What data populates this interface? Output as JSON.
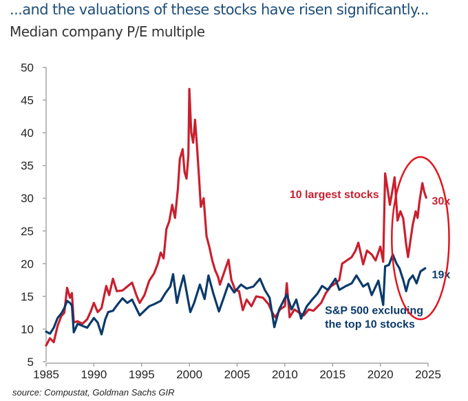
{
  "title": "...and the valuations of these stocks have risen significantly...",
  "subtitle": "Median company P/E multiple",
  "source": "source: Compustat, Goldman Sachs GIR",
  "colors": {
    "largest": "#c8202e",
    "excluding": "#0b3a6b",
    "title": "#1f4e79",
    "highlight": "#e0151f"
  },
  "chart_data": {
    "type": "line",
    "title": "Median company P/E multiple",
    "xlabel": "",
    "ylabel": "",
    "xlim": [
      1985,
      2025
    ],
    "ylim": [
      5,
      50
    ],
    "x_ticks": [
      "1985",
      "1990",
      "1995",
      "2000",
      "2005",
      "2010",
      "2015",
      "2020",
      "2025"
    ],
    "y_ticks": [
      "5",
      "10",
      "15",
      "20",
      "25",
      "30",
      "35",
      "40",
      "45",
      "50"
    ],
    "grid": false,
    "legend": "inline labels",
    "series": [
      {
        "name": "10 largest stocks",
        "label": "10 largest stocks",
        "end_label": "30x",
        "color_key": "largest",
        "points": [
          [
            1985.0,
            7.5
          ],
          [
            1985.4,
            8.6
          ],
          [
            1985.8,
            8.0
          ],
          [
            1986.2,
            10.5
          ],
          [
            1986.6,
            12.0
          ],
          [
            1986.9,
            12.5
          ],
          [
            1987.2,
            16.3
          ],
          [
            1987.5,
            14.8
          ],
          [
            1987.7,
            15.5
          ],
          [
            1987.9,
            11.0
          ],
          [
            1988.3,
            11.2
          ],
          [
            1988.8,
            10.8
          ],
          [
            1989.3,
            11.5
          ],
          [
            1989.7,
            12.8
          ],
          [
            1990.0,
            14.0
          ],
          [
            1990.4,
            12.6
          ],
          [
            1990.8,
            13.2
          ],
          [
            1991.3,
            16.6
          ],
          [
            1991.6,
            15.2
          ],
          [
            1992.0,
            17.7
          ],
          [
            1992.4,
            15.8
          ],
          [
            1993.0,
            15.9
          ],
          [
            1993.5,
            16.5
          ],
          [
            1994.0,
            17.1
          ],
          [
            1994.5,
            15.0
          ],
          [
            1994.8,
            14.0
          ],
          [
            1995.3,
            15.2
          ],
          [
            1995.8,
            17.4
          ],
          [
            1996.3,
            18.5
          ],
          [
            1996.7,
            20.0
          ],
          [
            1997.0,
            21.7
          ],
          [
            1997.3,
            20.8
          ],
          [
            1997.6,
            25.3
          ],
          [
            1997.9,
            26.5
          ],
          [
            1998.2,
            29.0
          ],
          [
            1998.5,
            27.0
          ],
          [
            1998.8,
            31.5
          ],
          [
            1999.0,
            36.0
          ],
          [
            1999.3,
            37.5
          ],
          [
            1999.5,
            34.0
          ],
          [
            1999.7,
            33.0
          ],
          [
            1999.9,
            36.5
          ],
          [
            2000.0,
            46.7
          ],
          [
            2000.2,
            40.0
          ],
          [
            2000.4,
            38.5
          ],
          [
            2000.6,
            42.0
          ],
          [
            2000.8,
            38.0
          ],
          [
            2001.0,
            33.5
          ],
          [
            2001.2,
            28.7
          ],
          [
            2001.5,
            30.0
          ],
          [
            2001.8,
            24.2
          ],
          [
            2002.1,
            22.5
          ],
          [
            2002.4,
            20.5
          ],
          [
            2002.7,
            19.0
          ],
          [
            2003.0,
            18.0
          ],
          [
            2003.2,
            16.8
          ],
          [
            2003.6,
            18.5
          ],
          [
            2004.1,
            20.6
          ],
          [
            2004.4,
            17.5
          ],
          [
            2004.8,
            16.0
          ],
          [
            2005.2,
            15.8
          ],
          [
            2005.6,
            12.9
          ],
          [
            2006.0,
            14.5
          ],
          [
            2006.5,
            13.5
          ],
          [
            2007.0,
            15.0
          ],
          [
            2007.7,
            14.8
          ],
          [
            2008.3,
            13.8
          ],
          [
            2008.7,
            12.5
          ],
          [
            2009.0,
            11.8
          ],
          [
            2009.5,
            13.0
          ],
          [
            2010.0,
            13.5
          ],
          [
            2010.2,
            17.0
          ],
          [
            2010.5,
            11.8
          ],
          [
            2011.0,
            13.0
          ],
          [
            2011.5,
            12.5
          ],
          [
            2012.0,
            12.1
          ],
          [
            2012.5,
            13.0
          ],
          [
            2013.0,
            12.8
          ],
          [
            2013.8,
            14.0
          ],
          [
            2014.3,
            15.5
          ],
          [
            2014.8,
            16.5
          ],
          [
            2015.3,
            17.0
          ],
          [
            2015.7,
            17.5
          ],
          [
            2016.0,
            20.0
          ],
          [
            2016.5,
            20.5
          ],
          [
            2017.0,
            21.0
          ],
          [
            2017.4,
            22.0
          ],
          [
            2017.7,
            23.2
          ],
          [
            2018.2,
            19.9
          ],
          [
            2018.6,
            22.0
          ],
          [
            2019.1,
            21.4
          ],
          [
            2019.5,
            20.5
          ],
          [
            2020.0,
            22.6
          ],
          [
            2020.3,
            20.3
          ],
          [
            2020.5,
            33.8
          ],
          [
            2020.8,
            31.0
          ],
          [
            2021.0,
            29.0
          ],
          [
            2021.3,
            31.5
          ],
          [
            2021.5,
            33.2
          ],
          [
            2021.8,
            26.6
          ],
          [
            2022.1,
            28.0
          ],
          [
            2022.4,
            26.9
          ],
          [
            2022.7,
            23.0
          ],
          [
            2022.9,
            21.0
          ],
          [
            2023.2,
            24.0
          ],
          [
            2023.4,
            26.0
          ],
          [
            2023.7,
            28.0
          ],
          [
            2023.9,
            27.0
          ],
          [
            2024.1,
            29.5
          ],
          [
            2024.4,
            32.3
          ],
          [
            2024.6,
            31.0
          ],
          [
            2024.8,
            30.1
          ]
        ]
      },
      {
        "name": "S&P 500 excluding the top 10 stocks",
        "label": "S&P 500 excluding the top 10 stocks",
        "end_label": "19x",
        "color_key": "excluding",
        "points": [
          [
            1985.0,
            9.6
          ],
          [
            1985.4,
            9.3
          ],
          [
            1985.8,
            10.2
          ],
          [
            1986.2,
            11.7
          ],
          [
            1986.6,
            12.4
          ],
          [
            1986.9,
            13.2
          ],
          [
            1987.2,
            14.3
          ],
          [
            1987.5,
            14.0
          ],
          [
            1987.7,
            13.6
          ],
          [
            1987.9,
            9.5
          ],
          [
            1988.3,
            10.8
          ],
          [
            1988.8,
            10.5
          ],
          [
            1989.3,
            10.2
          ],
          [
            1990.0,
            11.7
          ],
          [
            1990.4,
            11.0
          ],
          [
            1990.8,
            9.2
          ],
          [
            1991.2,
            11.5
          ],
          [
            1991.5,
            12.6
          ],
          [
            1992.0,
            12.8
          ],
          [
            1992.5,
            13.8
          ],
          [
            1993.0,
            14.7
          ],
          [
            1993.5,
            14.0
          ],
          [
            1994.0,
            14.5
          ],
          [
            1994.5,
            13.0
          ],
          [
            1994.8,
            12.1
          ],
          [
            1995.3,
            12.8
          ],
          [
            1995.8,
            13.5
          ],
          [
            1996.3,
            13.8
          ],
          [
            1997.0,
            14.3
          ],
          [
            1997.5,
            15.5
          ],
          [
            1998.0,
            16.5
          ],
          [
            1998.3,
            18.4
          ],
          [
            1998.7,
            14.0
          ],
          [
            1999.0,
            16.0
          ],
          [
            1999.4,
            18.2
          ],
          [
            1999.8,
            15.0
          ],
          [
            2000.1,
            12.6
          ],
          [
            2000.5,
            14.0
          ],
          [
            2001.1,
            16.8
          ],
          [
            2001.6,
            14.6
          ],
          [
            2002.0,
            18.2
          ],
          [
            2002.5,
            15.5
          ],
          [
            2003.1,
            12.7
          ],
          [
            2003.6,
            14.8
          ],
          [
            2004.1,
            16.9
          ],
          [
            2004.7,
            15.6
          ],
          [
            2005.4,
            16.8
          ],
          [
            2006.0,
            16.2
          ],
          [
            2006.7,
            16.5
          ],
          [
            2007.4,
            17.7
          ],
          [
            2007.9,
            16.0
          ],
          [
            2008.4,
            14.8
          ],
          [
            2008.9,
            10.3
          ],
          [
            2009.4,
            13.0
          ],
          [
            2010.2,
            15.3
          ],
          [
            2010.7,
            13.0
          ],
          [
            2011.2,
            14.5
          ],
          [
            2011.7,
            11.6
          ],
          [
            2012.3,
            13.5
          ],
          [
            2012.8,
            14.4
          ],
          [
            2013.4,
            15.4
          ],
          [
            2013.9,
            16.6
          ],
          [
            2014.5,
            16.0
          ],
          [
            2015.3,
            17.7
          ],
          [
            2015.7,
            16.0
          ],
          [
            2016.3,
            16.5
          ],
          [
            2017.0,
            17.0
          ],
          [
            2017.5,
            18.2
          ],
          [
            2018.2,
            16.5
          ],
          [
            2018.7,
            17.0
          ],
          [
            2019.1,
            15.2
          ],
          [
            2019.8,
            17.4
          ],
          [
            2020.3,
            13.7
          ],
          [
            2020.5,
            19.6
          ],
          [
            2020.9,
            19.8
          ],
          [
            2021.3,
            21.4
          ],
          [
            2021.7,
            20.0
          ],
          [
            2022.0,
            19.3
          ],
          [
            2022.4,
            17.5
          ],
          [
            2022.7,
            15.8
          ],
          [
            2023.0,
            17.5
          ],
          [
            2023.4,
            18.2
          ],
          [
            2023.8,
            17.0
          ],
          [
            2024.2,
            18.8
          ],
          [
            2024.7,
            19.3
          ]
        ]
      }
    ],
    "annotations": [
      {
        "text": "10 largest stocks",
        "color_key": "largest",
        "x": 2010.5,
        "y": 30
      },
      {
        "text": "30x",
        "color_key": "largest",
        "x": 2025.4,
        "y": 29.0
      },
      {
        "text": "19x",
        "color_key": "excluding",
        "x": 2025.4,
        "y": 17.8
      },
      {
        "text": "S&P 500 excluding",
        "color_key": "excluding",
        "x": 2014.2,
        "y": 12.3
      },
      {
        "text": "the top 10 stocks",
        "color_key": "excluding",
        "x": 2014.2,
        "y": 10.2
      }
    ],
    "highlight_ellipse": {
      "x_center": 2024.2,
      "y_center": 23.9,
      "x_halfwidth": 3.0,
      "y_halfwidth": 12.4
    }
  }
}
